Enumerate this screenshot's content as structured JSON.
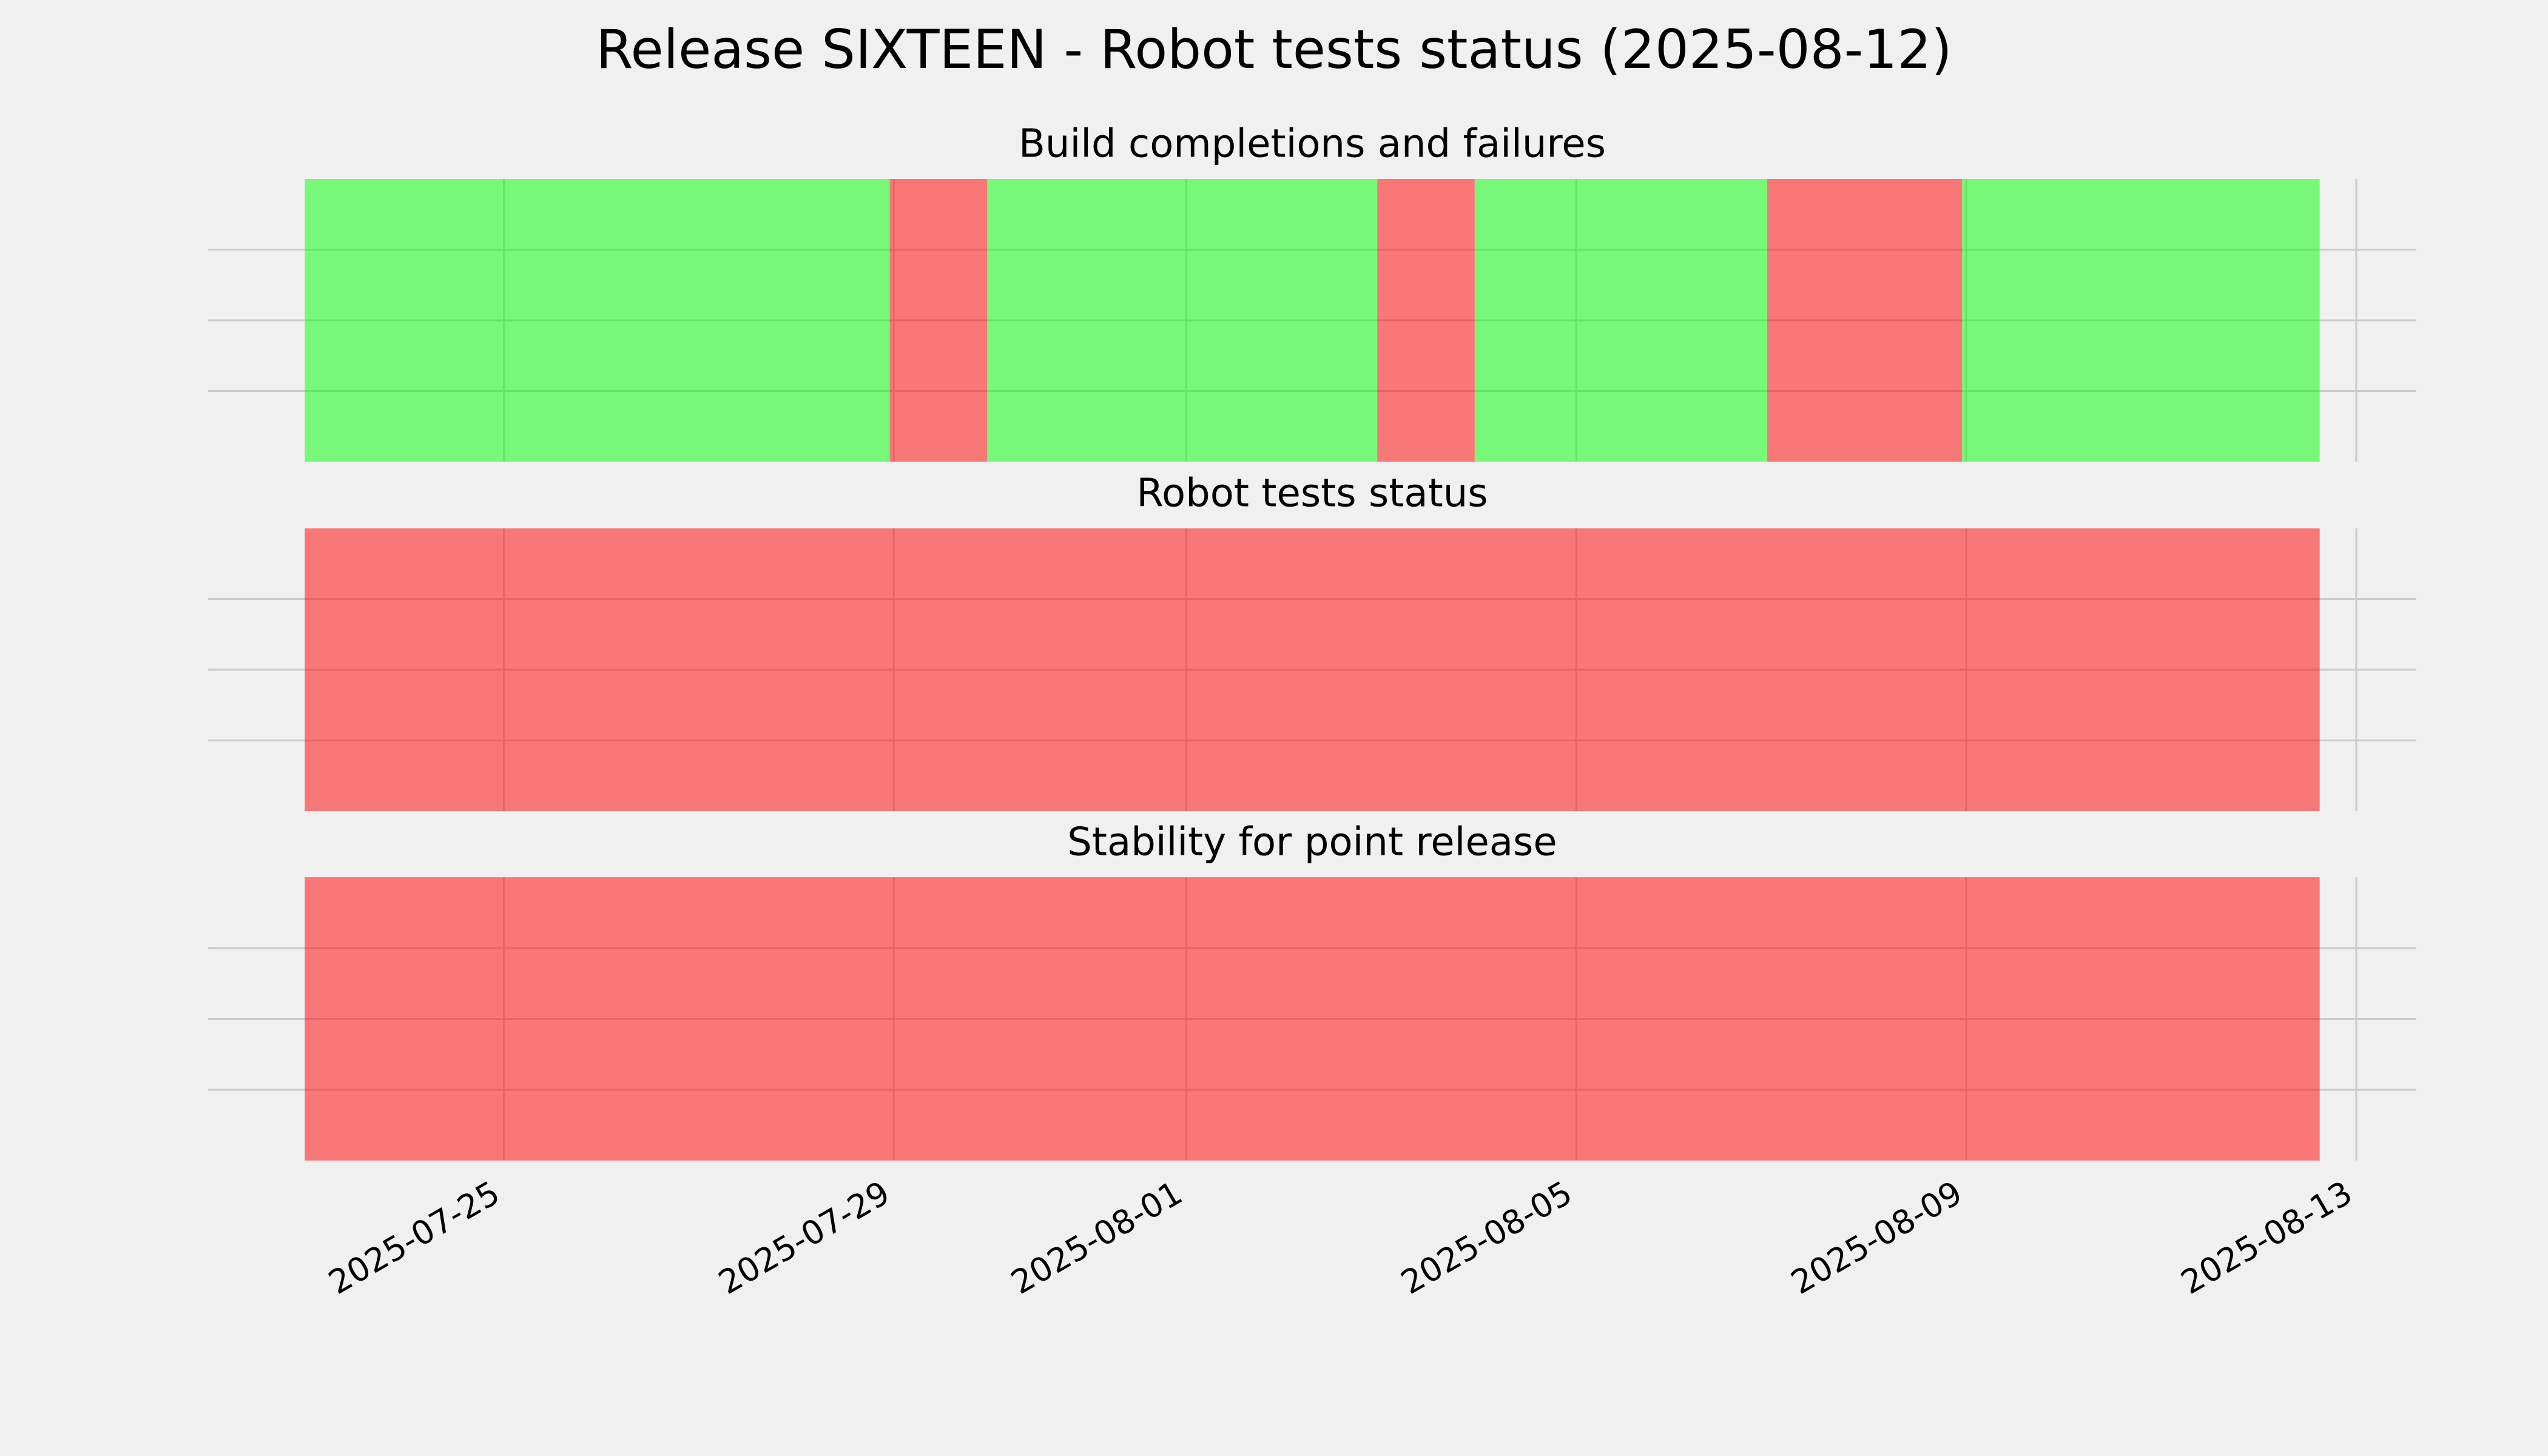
{
  "title": "Release SIXTEEN - Robot tests status (2025-08-12)",
  "chart_data": [
    {
      "type": "timeline",
      "title": "Build completions and failures",
      "alpha": 0.5,
      "grid": true,
      "xlim": [
        "2025-07-21T23:12",
        "2025-08-13T14:48"
      ],
      "xticks": [
        "2025-07-25",
        "2025-07-29",
        "2025-08-01",
        "2025-08-05",
        "2025-08-09",
        "2025-08-13"
      ],
      "ylim": [
        0,
        1
      ],
      "yticks": [
        0.25,
        0.5,
        0.75
      ],
      "segments": [
        {
          "start": "2025-07-22T23:00",
          "end": "2025-07-28T23:00",
          "color": "#00ff00"
        },
        {
          "start": "2025-07-28T23:00",
          "end": "2025-07-29T23:00",
          "color": "#ff0000"
        },
        {
          "start": "2025-07-29T23:00",
          "end": "2025-08-02T23:00",
          "color": "#00ff00"
        },
        {
          "start": "2025-08-02T23:00",
          "end": "2025-08-03T23:00",
          "color": "#ff0000"
        },
        {
          "start": "2025-08-03T23:00",
          "end": "2025-08-06T23:00",
          "color": "#00ff00"
        },
        {
          "start": "2025-08-06T23:00",
          "end": "2025-08-08T23:00",
          "color": "#ff0000"
        },
        {
          "start": "2025-08-08T23:00",
          "end": "2025-08-12T15:00",
          "color": "#00ff00"
        }
      ]
    },
    {
      "type": "timeline",
      "title": "Robot tests status",
      "alpha": 0.5,
      "grid": true,
      "xlim": [
        "2025-07-21T23:12",
        "2025-08-13T14:48"
      ],
      "xticks": [
        "2025-07-25",
        "2025-07-29",
        "2025-08-01",
        "2025-08-05",
        "2025-08-09",
        "2025-08-13"
      ],
      "ylim": [
        0,
        1
      ],
      "yticks": [
        0.25,
        0.5,
        0.75
      ],
      "segments": [
        {
          "start": "2025-07-22T23:00",
          "end": "2025-08-12T15:00",
          "color": "#ff0000"
        }
      ]
    },
    {
      "type": "timeline",
      "title": "Stability for point release",
      "alpha": 0.5,
      "grid": true,
      "xlim": [
        "2025-07-21T23:12",
        "2025-08-13T14:48"
      ],
      "xticks": [
        "2025-07-25",
        "2025-07-29",
        "2025-08-01",
        "2025-08-05",
        "2025-08-09",
        "2025-08-13"
      ],
      "ylim": [
        0,
        1
      ],
      "yticks": [
        0.25,
        0.5,
        0.75
      ],
      "segments": [
        {
          "start": "2025-07-22T23:00",
          "end": "2025-08-12T15:00",
          "color": "#ff0000"
        }
      ]
    }
  ]
}
